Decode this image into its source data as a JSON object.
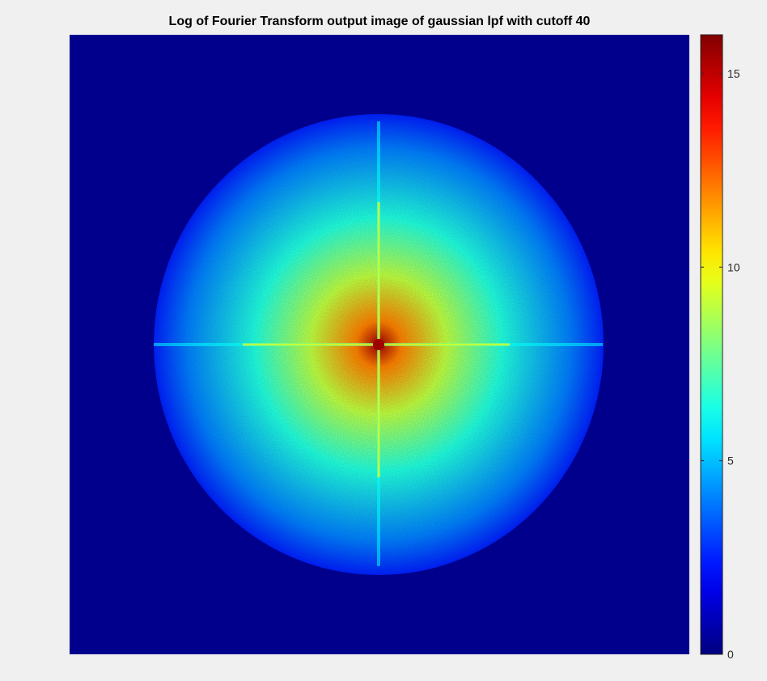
{
  "chart_data": {
    "type": "heatmap",
    "title": "Log of Fourier Transform output image of gaussian lpf with cutoff 40",
    "xlabel": "",
    "ylabel": "",
    "colormap": "jet",
    "background_value": 0.2,
    "colorbar": {
      "range": [
        0,
        16
      ],
      "ticks": [
        0,
        5,
        10,
        15
      ],
      "tick_labels": [
        "0",
        "5",
        "10",
        "15"
      ],
      "placement": "right"
    },
    "spectrum": {
      "center_value": 15.5,
      "description_shape": "elliptical spectrum with bright center and cross-shaped axis streaks",
      "levels": [
        {
          "radius_fraction": 0.0,
          "value": 15.5
        },
        {
          "radius_fraction": 0.1,
          "value": 12
        },
        {
          "radius_fraction": 0.3,
          "value": 9
        },
        {
          "radius_fraction": 0.55,
          "value": 6.5
        },
        {
          "radius_fraction": 0.85,
          "value": 4
        },
        {
          "radius_fraction": 1.0,
          "value": 2.5
        }
      ]
    }
  },
  "colors": {
    "figure_background": "#f0f0f0",
    "axes_background": "#000080"
  }
}
